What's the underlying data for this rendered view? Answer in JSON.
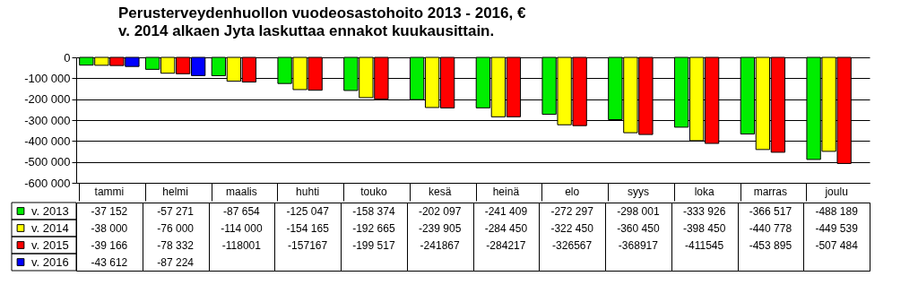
{
  "chart_data": {
    "type": "bar",
    "title": "Perusterveydenhuollon vuodeosastohoito 2013 - 2016, €",
    "subtitle": "v. 2014 alkaen Jyta laskuttaa ennakot kuukausittain.",
    "categories": [
      "tammi",
      "helmi",
      "maalis",
      "huhti",
      "touko",
      "kesä",
      "heinä",
      "elo",
      "syys",
      "loka",
      "marras",
      "joulu"
    ],
    "series": [
      {
        "name": "v. 2013",
        "color": "#00ee00",
        "values": [
          -37152,
          -57271,
          -87654,
          -125047,
          -158374,
          -202097,
          -241409,
          -272297,
          -298001,
          -333926,
          -366517,
          -488189
        ],
        "value_labels": [
          "-37 152",
          "-57 271",
          "-87 654",
          "-125 047",
          "-158 374",
          "-202 097",
          "-241 409",
          "-272 297",
          "-298 001",
          "-333 926",
          "-366 517",
          "-488 189"
        ]
      },
      {
        "name": "v. 2014",
        "color": "#ffff00",
        "values": [
          -38000,
          -76000,
          -114000,
          -154165,
          -192665,
          -239905,
          -284450,
          -322450,
          -360450,
          -398450,
          -440778,
          -449539
        ],
        "value_labels": [
          "-38 000",
          "-76 000",
          "-114 000",
          "-154 165",
          "-192 665",
          "-239 905",
          "-284 450",
          "-322 450",
          "-360 450",
          "-398 450",
          "-440 778",
          "-449 539"
        ]
      },
      {
        "name": "v. 2015",
        "color": "#ff0000",
        "values": [
          -39166,
          -78332,
          -118001,
          -157167,
          -199517,
          -241867,
          -284217,
          -326567,
          -368917,
          -411545,
          -453895,
          -507484
        ],
        "value_labels": [
          "-39 166",
          "-78 332",
          "-118001",
          "-157167",
          "-199 517",
          "-241867",
          "-284217",
          "-326567",
          "-368917",
          "-411545",
          "-453 895",
          "-507 484"
        ]
      },
      {
        "name": "v. 2016",
        "color": "#0000ff",
        "values": [
          -43612,
          -87224,
          null,
          null,
          null,
          null,
          null,
          null,
          null,
          null,
          null,
          null
        ],
        "value_labels": [
          "-43 612",
          "-87 224",
          null,
          null,
          null,
          null,
          null,
          null,
          null,
          null,
          null,
          null
        ]
      }
    ],
    "ylim": [
      -600000,
      0
    ],
    "yticks": [
      0,
      {
        "value": -100000,
        "label": "-100 000"
      },
      {
        "value": -200000,
        "label": "-200 000"
      },
      {
        "value": -300000,
        "label": "-300 000"
      },
      {
        "value": -400000,
        "label": "-400 000"
      },
      {
        "value": -500000,
        "label": "-500 000"
      },
      {
        "value": -600000,
        "label": "-600 000"
      }
    ],
    "grid": "y",
    "legend": "bottom"
  }
}
